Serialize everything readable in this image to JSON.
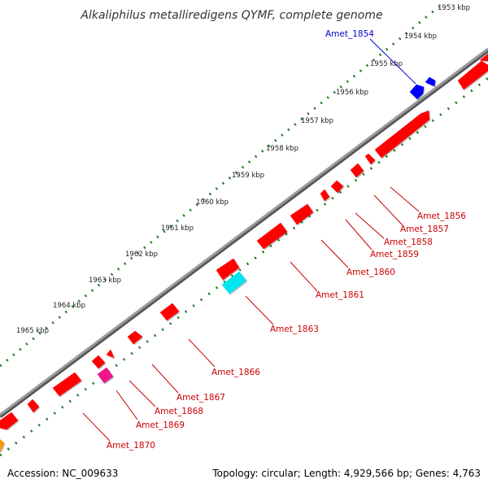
{
  "title": "Alkaliphilus metalliredigens QYMF, complete genome",
  "footer": {
    "accession": "Accession: NC_009633",
    "summary": "Topology: circular; Length: 4,929,566 bp; Genes: 4,763"
  },
  "colors": {
    "backbone": "#808080",
    "tick_track": "#1e7a1e",
    "default_gene": "#ff0000",
    "default_label": "#cc0000",
    "highlight_label": "#0000cc"
  },
  "kbp_ticks": [
    "1953 kbp",
    "1954 kbp",
    "1955 kbp",
    "1956 kbp",
    "1957 kbp",
    "1958 kbp",
    "1959 kbp",
    "1960 kbp",
    "1961 kbp",
    "1962 kbp",
    "1963 kbp",
    "1964 kbp",
    "1965 kbp"
  ],
  "gene_labels": [
    {
      "text": "Amet_1854",
      "color": "#0000cc"
    },
    {
      "text": "Amet_1856",
      "color": "#cc0000"
    },
    {
      "text": "Amet_1857",
      "color": "#cc0000"
    },
    {
      "text": "Amet_1858",
      "color": "#cc0000"
    },
    {
      "text": "Amet_1859",
      "color": "#cc0000"
    },
    {
      "text": "Amet_1860",
      "color": "#cc0000"
    },
    {
      "text": "Amet_1861",
      "color": "#cc0000"
    },
    {
      "text": "Amet_1863",
      "color": "#cc0000"
    },
    {
      "text": "Amet_1866",
      "color": "#cc0000"
    },
    {
      "text": "Amet_1867",
      "color": "#cc0000"
    },
    {
      "text": "Amet_1868",
      "color": "#cc0000"
    },
    {
      "text": "Amet_1869",
      "color": "#cc0000"
    },
    {
      "text": "Amet_1870",
      "color": "#cc0000"
    }
  ],
  "gene_colors": [
    "#ff0000",
    "#ff0000",
    "#0000ff",
    "#0000ff",
    "#00e5ee",
    "#ee1289",
    "#ff9900"
  ]
}
